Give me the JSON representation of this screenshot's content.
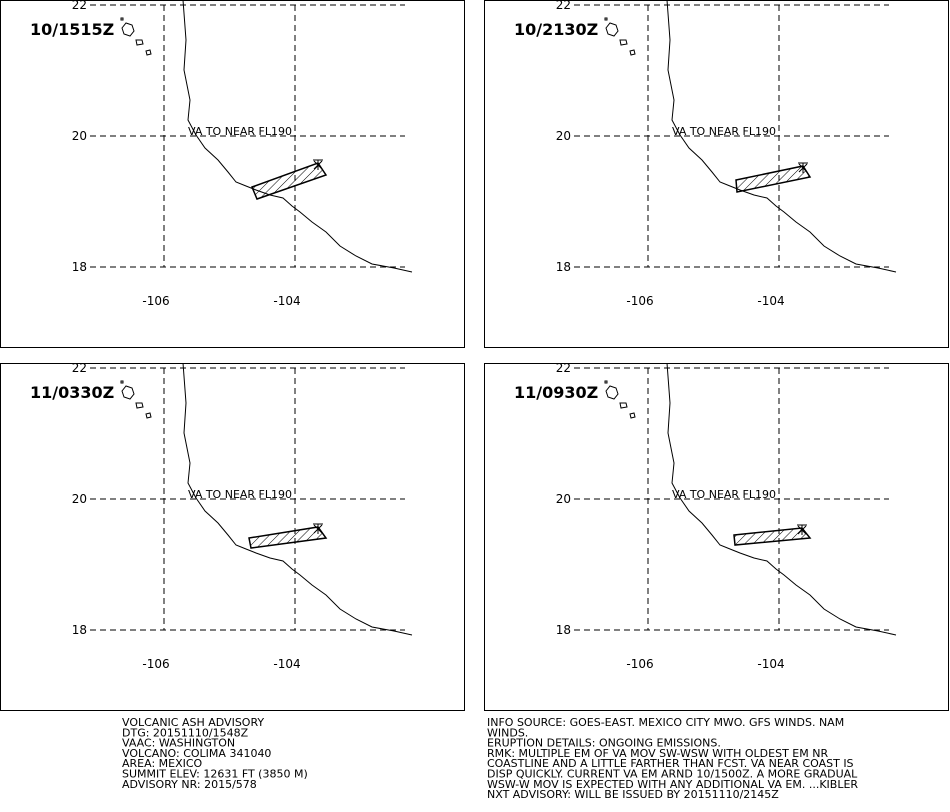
{
  "panels": [
    {
      "time": "10/1515Z",
      "annotation": "VA TO NEAR FL190"
    },
    {
      "time": "10/2130Z",
      "annotation": "VA TO NEAR FL190"
    },
    {
      "time": "11/0330Z",
      "annotation": "VA TO NEAR FL190"
    },
    {
      "time": "11/0930Z",
      "annotation": "VA TO NEAR FL190"
    }
  ],
  "lat_labels": [
    "22",
    "20",
    "18"
  ],
  "lon_labels": [
    "-106",
    "-104"
  ],
  "advisory_left": [
    "VOLCANIC ASH ADVISORY",
    "DTG: 20151110/1548Z",
    "VAAC: WASHINGTON",
    "VOLCANO: COLIMA 341040",
    "AREA: MEXICO",
    "SUMMIT ELEV: 12631 FT (3850 M)",
    "ADVISORY NR: 2015/578"
  ],
  "advisory_right": [
    "INFO SOURCE: GOES-EAST. MEXICO CITY MWO. GFS WINDS. NAM",
    "WINDS.",
    "ERUPTION DETAILS: ONGOING EMISSIONS.",
    "RMK: MULTIPLE EM OF VA MOV SW-WSW WITH OLDEST EM NR",
    "COASTLINE AND A LITTLE FARTHER THAN FCST. VA NEAR COAST IS",
    "DISP QUICKLY. CURRENT VA EM ARND 10/1500Z. A MORE GRADUAL",
    "WSW-W MOV IS EXPECTED WITH ANY ADDITIONAL VA EM. ...KIBLER",
    "NXT ADVISORY: WILL BE ISSUED BY 20151110/2145Z"
  ]
}
